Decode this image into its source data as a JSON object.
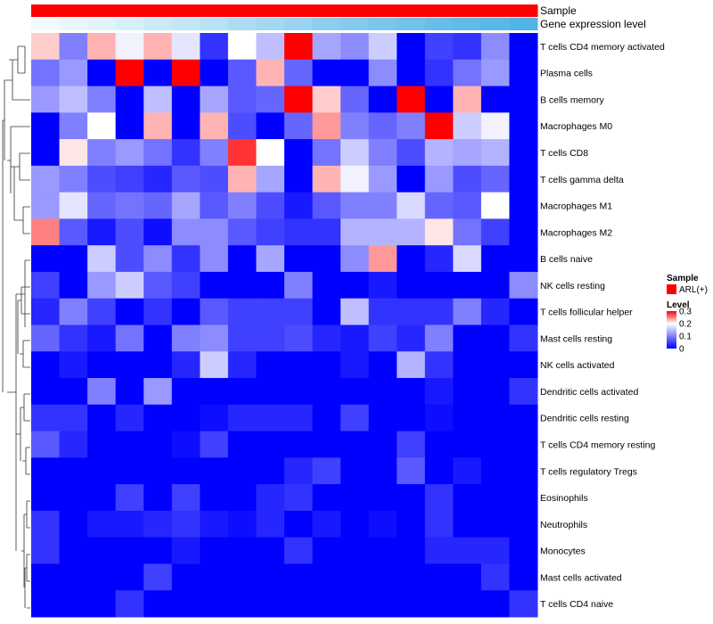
{
  "chart_data": {
    "type": "heatmap",
    "annotations": {
      "sample": {
        "name": "Sample",
        "color": "#ff0000"
      },
      "gene_expression": {
        "name": "Gene expression level",
        "colors": [
          "#f0fbfd",
          "#e8f7fc",
          "#e0f4fa",
          "#d6f0f9",
          "#cceaf6",
          "#c2e6f4",
          "#b8e1f3",
          "#aedcf2",
          "#a4d8f0",
          "#9ad3ef",
          "#90ceed",
          "#86cbec",
          "#7cc6ea",
          "#72c2e9",
          "#68bee8",
          "#60bbe7",
          "#58b8e6",
          "#50b5e5"
        ]
      }
    },
    "rows": [
      "T cells CD4 memory activated",
      "Plasma cells",
      "B cells memory",
      "Macrophages M0",
      "T cells CD8",
      "T cells gamma delta",
      "Macrophages M1",
      "Macrophages M2",
      "B cells naive",
      "NK cells resting",
      "T cells follicular helper",
      "Mast cells resting",
      "NK cells activated",
      "Dendritic cells activated",
      "Dendritic cells resting",
      "T cells CD4 memory resting",
      "T cells regulatory  Tregs",
      "Eosinophils",
      "Neutrophils",
      "Monocytes",
      "Mast cells activated",
      "T cells CD4 naive"
    ],
    "columns": 18,
    "values": [
      [
        0.22,
        0.1,
        0.23,
        0.19,
        0.23,
        0.18,
        0.04,
        0.2,
        0.15,
        0.3,
        0.13,
        0.11,
        0.16,
        0.0,
        0.05,
        0.04,
        0.11,
        0.0
      ],
      [
        0.09,
        0.12,
        0.0,
        0.3,
        0.0,
        0.3,
        0.0,
        0.07,
        0.23,
        0.08,
        0.0,
        0.0,
        0.11,
        0.0,
        0.04,
        0.09,
        0.12,
        0.0
      ],
      [
        0.12,
        0.15,
        0.1,
        0.0,
        0.15,
        0.0,
        0.13,
        0.07,
        0.08,
        0.3,
        0.22,
        0.08,
        0.0,
        0.3,
        0.0,
        0.23,
        0.0,
        0.0
      ],
      [
        0.0,
        0.1,
        0.2,
        0.0,
        0.23,
        0.0,
        0.23,
        0.06,
        0.0,
        0.08,
        0.24,
        0.1,
        0.08,
        0.1,
        0.3,
        0.16,
        0.19,
        0.0
      ],
      [
        0.0,
        0.21,
        0.1,
        0.12,
        0.09,
        0.04,
        0.1,
        0.28,
        0.2,
        0.0,
        0.09,
        0.16,
        0.1,
        0.06,
        0.14,
        0.13,
        0.14,
        0.0
      ],
      [
        0.12,
        0.1,
        0.06,
        0.05,
        0.03,
        0.07,
        0.06,
        0.23,
        0.13,
        0.0,
        0.23,
        0.19,
        0.12,
        0.0,
        0.12,
        0.06,
        0.08,
        0.0
      ],
      [
        0.12,
        0.18,
        0.08,
        0.09,
        0.08,
        0.13,
        0.07,
        0.1,
        0.06,
        0.02,
        0.07,
        0.1,
        0.1,
        0.17,
        0.08,
        0.07,
        0.2,
        0.0
      ],
      [
        0.25,
        0.07,
        0.02,
        0.06,
        0.01,
        0.11,
        0.11,
        0.07,
        0.05,
        0.04,
        0.04,
        0.14,
        0.14,
        0.14,
        0.21,
        0.09,
        0.05,
        0.0
      ],
      [
        0.0,
        0.0,
        0.16,
        0.06,
        0.11,
        0.04,
        0.11,
        0.0,
        0.13,
        0.0,
        0.0,
        0.11,
        0.24,
        0.0,
        0.03,
        0.17,
        0.0,
        0.0
      ],
      [
        0.05,
        0.0,
        0.12,
        0.16,
        0.07,
        0.05,
        0.0,
        0.0,
        0.0,
        0.1,
        0.0,
        0.0,
        0.02,
        0.0,
        0.0,
        0.0,
        0.0,
        0.11
      ],
      [
        0.03,
        0.1,
        0.05,
        0.0,
        0.04,
        0.0,
        0.07,
        0.05,
        0.05,
        0.05,
        0.0,
        0.15,
        0.04,
        0.04,
        0.04,
        0.1,
        0.03,
        0.0
      ],
      [
        0.08,
        0.04,
        0.02,
        0.09,
        0.0,
        0.1,
        0.11,
        0.05,
        0.05,
        0.06,
        0.03,
        0.02,
        0.05,
        0.03,
        0.1,
        0.0,
        0.0,
        0.04
      ],
      [
        0.0,
        0.02,
        0.0,
        0.0,
        0.0,
        0.03,
        0.16,
        0.03,
        0.0,
        0.0,
        0.0,
        0.02,
        0.0,
        0.14,
        0.04,
        0.0,
        0.0,
        0.0
      ],
      [
        0.0,
        0.0,
        0.1,
        0.0,
        0.12,
        0.0,
        0.0,
        0.0,
        0.0,
        0.0,
        0.0,
        0.0,
        0.0,
        0.0,
        0.02,
        0.0,
        0.0,
        0.04
      ],
      [
        0.04,
        0.04,
        0.0,
        0.03,
        0.0,
        0.0,
        0.01,
        0.03,
        0.03,
        0.03,
        0.0,
        0.05,
        0.0,
        0.0,
        0.01,
        0.0,
        0.0,
        0.0
      ],
      [
        0.07,
        0.03,
        0.0,
        0.0,
        0.0,
        0.01,
        0.05,
        0.0,
        0.0,
        0.0,
        0.0,
        0.0,
        0.0,
        0.05,
        0.0,
        0.0,
        0.0,
        0.0
      ],
      [
        0.0,
        0.0,
        0.0,
        0.0,
        0.0,
        0.0,
        0.0,
        0.0,
        0.0,
        0.03,
        0.05,
        0.0,
        0.0,
        0.07,
        0.0,
        0.02,
        0.0,
        0.0
      ],
      [
        0.0,
        0.0,
        0.0,
        0.05,
        0.0,
        0.05,
        0.0,
        0.0,
        0.03,
        0.04,
        0.0,
        0.0,
        0.0,
        0.0,
        0.04,
        0.0,
        0.0,
        0.0
      ],
      [
        0.04,
        0.0,
        0.02,
        0.02,
        0.03,
        0.04,
        0.02,
        0.01,
        0.03,
        0.0,
        0.02,
        0.0,
        0.01,
        0.0,
        0.04,
        0.0,
        0.0,
        0.0
      ],
      [
        0.04,
        0.0,
        0.0,
        0.0,
        0.0,
        0.02,
        0.0,
        0.0,
        0.0,
        0.04,
        0.0,
        0.0,
        0.0,
        0.0,
        0.03,
        0.03,
        0.03,
        0.0
      ],
      [
        0.0,
        0.0,
        0.0,
        0.0,
        0.05,
        0.0,
        0.0,
        0.0,
        0.0,
        0.0,
        0.0,
        0.0,
        0.0,
        0.0,
        0.0,
        0.0,
        0.04,
        0.0
      ],
      [
        0.0,
        0.0,
        0.0,
        0.04,
        0.0,
        0.0,
        0.0,
        0.0,
        0.0,
        0.0,
        0.0,
        0.0,
        0.0,
        0.0,
        0.0,
        0.0,
        0.0,
        0.04
      ]
    ],
    "color_scale": {
      "min": 0,
      "max": 0.3,
      "low": "#0000ff",
      "mid": "#ffffff",
      "high": "#ff0000",
      "mid_value": 0.2
    },
    "legend": {
      "sample_title": "Sample",
      "sample_item": "ARL(+)",
      "level_title": "Level",
      "level_ticks": [
        "0.3",
        "0.2",
        "0.1",
        "0"
      ],
      "level_tick_values": [
        0.3,
        0.2,
        0.1,
        0
      ]
    },
    "row_dendrogram": true,
    "column_dendrogram": false
  }
}
